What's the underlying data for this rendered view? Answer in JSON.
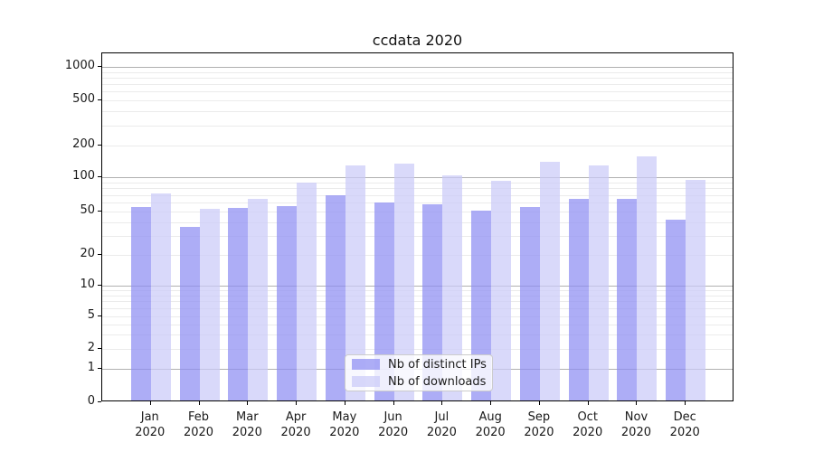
{
  "chart": {
    "title": "ccdata 2020",
    "y_tick_labels": [
      "0",
      "1",
      "2",
      "5",
      "10",
      "20",
      "50",
      "100",
      "200",
      "500",
      "1000"
    ],
    "background_color": "#ffffff",
    "spine_color": "#000000"
  },
  "chart_data": {
    "type": "bar",
    "title": "ccdata 2020",
    "categories": [
      "Jan 2020",
      "Feb 2020",
      "Mar 2020",
      "Apr 2020",
      "May 2020",
      "Jun 2020",
      "Jul 2020",
      "Aug 2020",
      "Sep 2020",
      "Oct 2020",
      "Nov 2020",
      "Dec 2020"
    ],
    "series": [
      {
        "name": "Nb of distinct IPs",
        "color": "#8d8df2",
        "values": [
          55,
          36,
          54,
          56,
          69,
          60,
          58,
          51,
          55,
          65,
          65,
          42
        ]
      },
      {
        "name": "Nb of downloads",
        "color": "#cacaf8",
        "values": [
          72,
          53,
          65,
          90,
          130,
          135,
          105,
          93,
          140,
          130,
          157,
          95
        ]
      }
    ],
    "bar_alpha": 0.72,
    "xlabel": "",
    "ylabel": "",
    "y_axis": {
      "scale": "symlog",
      "ticks": [
        0,
        1,
        2,
        5,
        10,
        20,
        50,
        100,
        200,
        500,
        1000
      ],
      "range_top": 1300
    },
    "grid": {
      "major_ticks": [
        1,
        10,
        100,
        1000
      ],
      "minor_ticks": [
        2,
        3,
        4,
        5,
        6,
        7,
        8,
        9,
        20,
        30,
        40,
        50,
        60,
        70,
        80,
        90,
        200,
        300,
        400,
        500,
        600,
        700,
        800,
        900
      ],
      "major_color": "#b0b0b0",
      "minor_color": "#ebebeb"
    },
    "legend_position": "lower center"
  }
}
